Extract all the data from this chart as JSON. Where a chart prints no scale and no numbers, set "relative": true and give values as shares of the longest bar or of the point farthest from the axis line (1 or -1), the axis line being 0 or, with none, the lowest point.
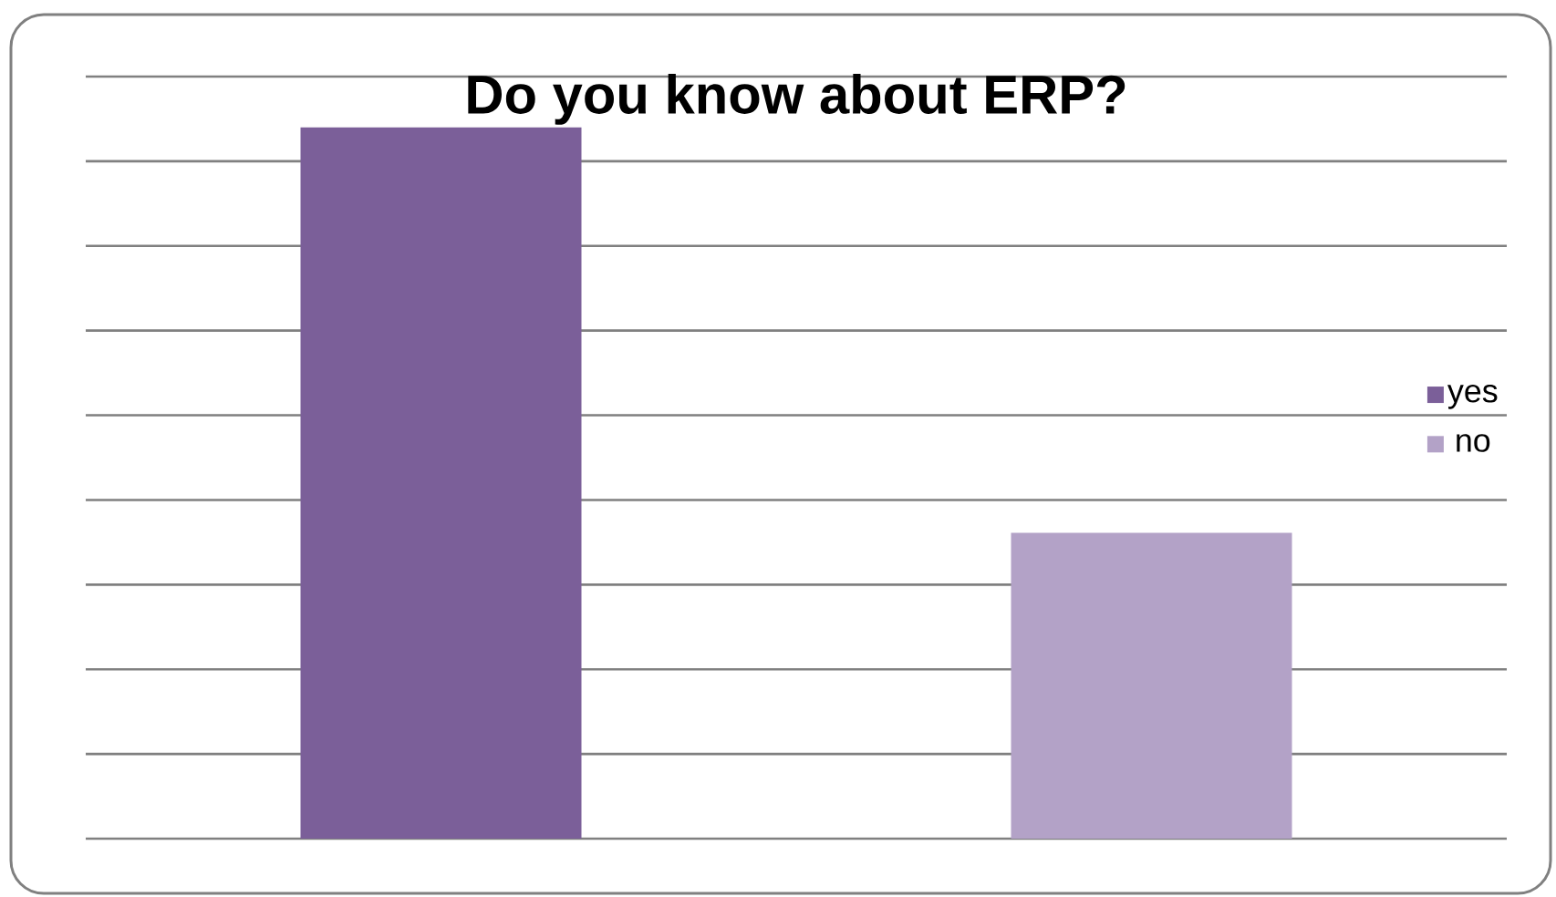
{
  "chart_data": {
    "type": "bar",
    "title": "Do you know about ERP?",
    "categories": [
      null,
      null
    ],
    "series": [
      {
        "name": "yes",
        "color": "#7b5f99",
        "values": [
          1,
          0
        ]
      },
      {
        "name": "no",
        "color": "#b3a2c7",
        "values": [
          0,
          0.43
        ]
      }
    ],
    "relative": true,
    "stacked": true,
    "grid": "y",
    "legend": "right",
    "tick_labels": false
  }
}
